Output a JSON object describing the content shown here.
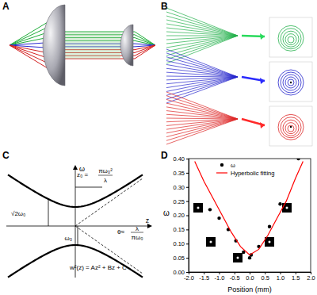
{
  "chart_data": {
    "type": "scatter",
    "xlabel": "Position (mm)",
    "ylabel": "ω",
    "xlim": [
      -2.0,
      2.0
    ],
    "ylim": [
      0,
      0.4
    ],
    "xticks": [
      {
        "value": -2.0,
        "label": "-2.0"
      },
      {
        "value": -1.5,
        "label": "-1.5"
      },
      {
        "value": -1.0,
        "label": "-1.0"
      },
      {
        "value": -0.5,
        "label": "-0.5"
      },
      {
        "value": 0,
        "label": "0.0"
      },
      {
        "value": 0.5,
        "label": "0.5"
      },
      {
        "value": 1.0,
        "label": "1.0"
      },
      {
        "value": 1.5,
        "label": "1.5"
      },
      {
        "value": 2.0,
        "label": "2.0"
      }
    ],
    "yticks": [
      {
        "value": 0,
        "label": "0.00"
      },
      {
        "value": 0.05,
        "label": "0.05"
      },
      {
        "value": 0.1,
        "label": "0.10"
      },
      {
        "value": 0.15,
        "label": "0.15"
      },
      {
        "value": 0.2,
        "label": "0.20"
      },
      {
        "value": 0.25,
        "label": "0.25"
      },
      {
        "value": 0.3,
        "label": "0.30"
      },
      {
        "value": 0.35,
        "label": "0.35"
      },
      {
        "value": 0.4,
        "label": "0.40"
      }
    ],
    "grid": false,
    "legend": "top",
    "series": [
      {
        "name": "ω",
        "type": "scatter",
        "marker": "circle",
        "color": "#000000",
        "x": [
          -1.3,
          -1.0,
          -0.7,
          -0.45,
          -0.2,
          0.0,
          0.05,
          0.3,
          0.65,
          1.0,
          1.6
        ],
        "values": [
          0.22,
          0.19,
          0.15,
          0.11,
          0.07,
          0.05,
          0.06,
          0.09,
          0.16,
          0.24,
          0.4
        ]
      },
      {
        "name": "Hyperbolic fitting",
        "type": "line",
        "line_style": "solid",
        "color": "#ff0000",
        "x": [
          -1.8,
          -1.5,
          -1.2,
          -0.9,
          -0.6,
          -0.3,
          0.0,
          0.3,
          0.6,
          0.9,
          1.2,
          1.5,
          1.75
        ],
        "values": [
          0.39,
          0.32,
          0.26,
          0.2,
          0.14,
          0.09,
          0.06,
          0.08,
          0.13,
          0.19,
          0.25,
          0.33,
          0.39
        ]
      }
    ]
  },
  "figure": {
    "panel_labels": [
      "A",
      "B",
      "C",
      "D"
    ],
    "diagram_c": {
      "axis_w": "ω",
      "axis_z": "z",
      "z0": [
        "z₀ =",
        "πω₀²",
        "λ"
      ],
      "theta": [
        "θ≈",
        "λ",
        "πω₀"
      ],
      "sqrt2w0": "√2ω₀",
      "w0": "ω₀",
      "formula": "w²(z) = Az² + Bz + C"
    }
  }
}
